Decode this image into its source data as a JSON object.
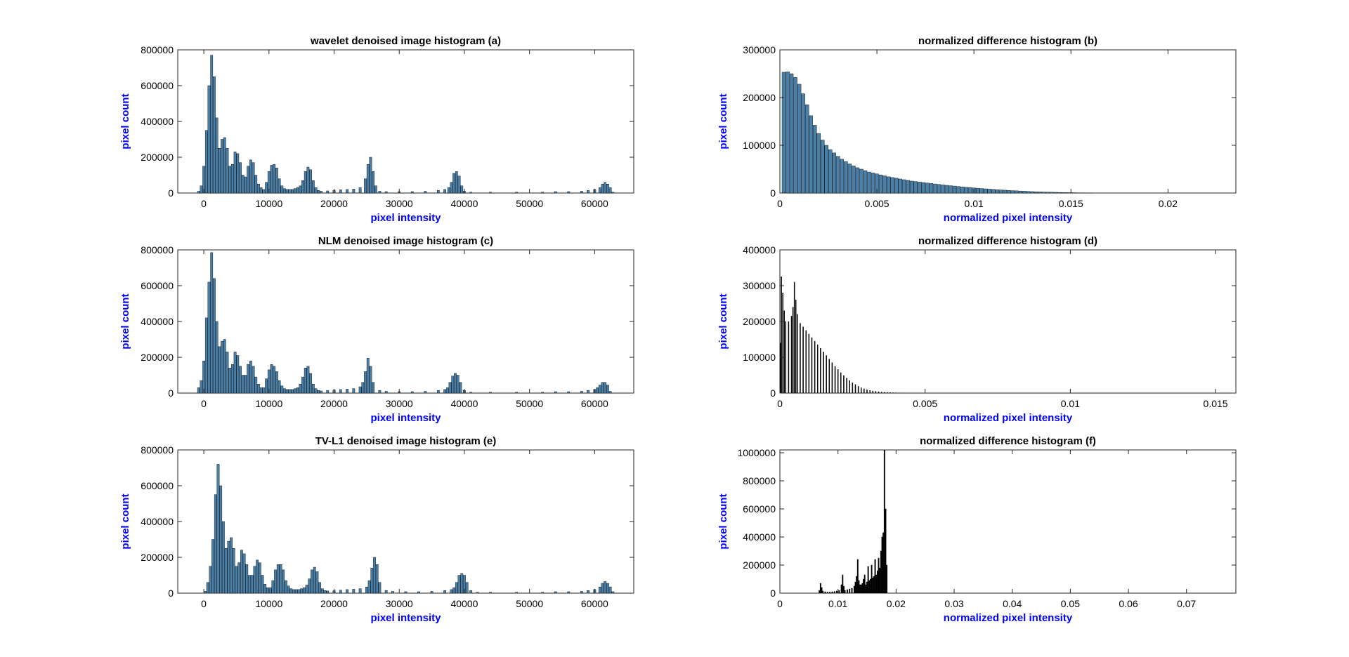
{
  "chart_data": [
    {
      "type": "bar",
      "title": "wavelet denoised image histogram (a)",
      "xlabel": "pixel intensity",
      "ylabel": "pixel count",
      "xlim": [
        -4000,
        66000
      ],
      "ylim": [
        0,
        800000
      ],
      "xticks": [
        0,
        10000,
        20000,
        30000,
        40000,
        50000,
        60000
      ],
      "yticks": [
        0,
        200000,
        400000,
        600000,
        800000
      ],
      "bar_color": "#4a7fa8",
      "x": [
        -800,
        -400,
        0,
        400,
        800,
        1200,
        1600,
        2000,
        2400,
        2800,
        3200,
        3600,
        4000,
        4400,
        4800,
        5200,
        5600,
        6000,
        6400,
        6800,
        7200,
        7600,
        8000,
        8400,
        8800,
        9200,
        9600,
        10000,
        10400,
        10800,
        11200,
        11600,
        12000,
        12400,
        12800,
        13200,
        13600,
        14000,
        14400,
        14800,
        15200,
        15600,
        16000,
        16400,
        16800,
        17200,
        17600,
        18000,
        19000,
        20000,
        21000,
        22000,
        23000,
        24000,
        24800,
        25200,
        25600,
        26000,
        26400,
        27000,
        28000,
        30000,
        32000,
        34000,
        36000,
        37000,
        37600,
        38000,
        38400,
        38800,
        39200,
        39600,
        40000,
        41000,
        44000,
        48000,
        52000,
        54000,
        56000,
        58000,
        59000,
        60000,
        60800,
        61200,
        61600,
        62000,
        62400,
        62800
      ],
      "values": [
        10000,
        40000,
        150000,
        350000,
        600000,
        770000,
        650000,
        420000,
        250000,
        300000,
        310000,
        250000,
        150000,
        160000,
        230000,
        220000,
        170000,
        100000,
        90000,
        150000,
        185000,
        170000,
        100000,
        50000,
        30000,
        20000,
        60000,
        120000,
        155000,
        160000,
        140000,
        80000,
        40000,
        25000,
        20000,
        20000,
        20000,
        25000,
        30000,
        40000,
        70000,
        120000,
        145000,
        130000,
        70000,
        30000,
        15000,
        10000,
        12000,
        15000,
        18000,
        20000,
        22000,
        30000,
        80000,
        160000,
        200000,
        120000,
        40000,
        10000,
        8000,
        8000,
        8000,
        10000,
        15000,
        20000,
        30000,
        60000,
        110000,
        120000,
        95000,
        40000,
        10000,
        5000,
        5000,
        5000,
        5000,
        8000,
        8000,
        10000,
        15000,
        20000,
        30000,
        50000,
        60000,
        50000,
        30000,
        5000
      ]
    },
    {
      "type": "bar",
      "title": "normalized difference histogram (b)",
      "xlabel": "normalized pixel intensity",
      "ylabel": "pixel count",
      "xlim": [
        0,
        0.0235
      ],
      "ylim": [
        0,
        300000
      ],
      "xticks": [
        0,
        0.005,
        0.01,
        0.015,
        0.02
      ],
      "yticks": [
        0,
        100000,
        200000,
        300000
      ],
      "bar_color": "#4a7fa8",
      "x": [
        0.0002,
        0.0004,
        0.0006,
        0.0008,
        0.001,
        0.0012,
        0.0014,
        0.0016,
        0.0018,
        0.002,
        0.0022,
        0.0024,
        0.0026,
        0.0028,
        0.003,
        0.0032,
        0.0034,
        0.0036,
        0.0038,
        0.004,
        0.0042,
        0.0044,
        0.0046,
        0.0048,
        0.005,
        0.0052,
        0.0054,
        0.0056,
        0.0058,
        0.006,
        0.0062,
        0.0064,
        0.0066,
        0.0068,
        0.007,
        0.0072,
        0.0074,
        0.0076,
        0.0078,
        0.008,
        0.0082,
        0.0084,
        0.0086,
        0.0088,
        0.009,
        0.0092,
        0.0094,
        0.0096,
        0.0098,
        0.01,
        0.0102,
        0.0104,
        0.0106,
        0.0108,
        0.011,
        0.0112,
        0.0114,
        0.0116,
        0.0118,
        0.012,
        0.0122,
        0.0124,
        0.0126,
        0.0128,
        0.013,
        0.0132,
        0.0134,
        0.0136,
        0.0138,
        0.014,
        0.0142,
        0.0144,
        0.0146,
        0.0148,
        0.015,
        0.0152,
        0.0154,
        0.0156,
        0.0158,
        0.016
      ],
      "values": [
        253000,
        254000,
        250000,
        242000,
        228000,
        208000,
        185000,
        162000,
        142000,
        125000,
        111000,
        100000,
        91000,
        84000,
        77000,
        71000,
        66000,
        61000,
        57000,
        53000,
        50000,
        47000,
        44000,
        42000,
        40000,
        38000,
        36000,
        34000,
        32500,
        31000,
        29500,
        28000,
        26500,
        25000,
        24000,
        23000,
        22000,
        21000,
        20000,
        19000,
        18000,
        17000,
        16200,
        15400,
        14600,
        13800,
        13000,
        12200,
        11500,
        10800,
        10100,
        9400,
        8800,
        8200,
        7600,
        7000,
        6500,
        6000,
        5500,
        5000,
        4600,
        4200,
        3800,
        3400,
        3000,
        2700,
        2400,
        2100,
        1900,
        1700,
        1500,
        1300,
        1100,
        950,
        800,
        650,
        500,
        380,
        260,
        150
      ]
    },
    {
      "type": "bar",
      "title": "NLM denoised image histogram (c)",
      "xlabel": "pixel intensity",
      "ylabel": "pixel count",
      "xlim": [
        -4000,
        66000
      ],
      "ylim": [
        0,
        800000
      ],
      "xticks": [
        0,
        10000,
        20000,
        30000,
        40000,
        50000,
        60000
      ],
      "yticks": [
        0,
        200000,
        400000,
        600000,
        800000
      ],
      "bar_color": "#4a7fa8",
      "x": [
        -800,
        -400,
        0,
        400,
        800,
        1200,
        1600,
        2000,
        2400,
        2800,
        3200,
        3600,
        4000,
        4400,
        4800,
        5200,
        5600,
        6000,
        6400,
        6800,
        7200,
        7600,
        8000,
        8400,
        8800,
        9200,
        9600,
        10000,
        10400,
        10800,
        11200,
        11600,
        12000,
        12400,
        12800,
        13200,
        13600,
        14000,
        14400,
        14800,
        15200,
        15600,
        16000,
        16400,
        16800,
        17200,
        17600,
        18000,
        19000,
        20000,
        21000,
        22000,
        23000,
        24000,
        24400,
        24800,
        25200,
        25600,
        26000,
        27000,
        28000,
        30000,
        32000,
        34000,
        36000,
        37000,
        37400,
        37800,
        38200,
        38600,
        39000,
        39400,
        40000,
        41000,
        44000,
        48000,
        52000,
        54000,
        56000,
        58000,
        59000,
        60000,
        60400,
        60800,
        61200,
        61600,
        62000,
        62400
      ],
      "values": [
        30000,
        70000,
        180000,
        420000,
        620000,
        785000,
        640000,
        400000,
        260000,
        290000,
        300000,
        230000,
        140000,
        160000,
        230000,
        210000,
        150000,
        100000,
        100000,
        160000,
        180000,
        150000,
        90000,
        50000,
        30000,
        30000,
        80000,
        130000,
        160000,
        150000,
        120000,
        70000,
        40000,
        25000,
        20000,
        20000,
        20000,
        25000,
        30000,
        50000,
        90000,
        140000,
        150000,
        110000,
        50000,
        25000,
        15000,
        12000,
        14000,
        17000,
        20000,
        22000,
        25000,
        35000,
        60000,
        120000,
        195000,
        150000,
        60000,
        15000,
        10000,
        8000,
        8000,
        10000,
        15000,
        20000,
        30000,
        60000,
        95000,
        110000,
        100000,
        60000,
        15000,
        5000,
        5000,
        5000,
        5000,
        8000,
        8000,
        10000,
        15000,
        20000,
        30000,
        45000,
        60000,
        60000,
        45000,
        10000
      ]
    },
    {
      "type": "bar",
      "title": "normalized difference histogram (d)",
      "xlabel": "normalized pixel intensity",
      "ylabel": "pixel count",
      "xlim": [
        0,
        0.0157
      ],
      "ylim": [
        0,
        400000
      ],
      "xticks": [
        0,
        0.005,
        0.01,
        0.015
      ],
      "yticks": [
        0,
        100000,
        200000,
        300000,
        400000
      ],
      "bar_color": "#000000",
      "x": [
        2e-05,
        5e-05,
        0.0001,
        0.00015,
        0.0002,
        0.0003,
        0.0004,
        0.00045,
        0.0005,
        0.00055,
        0.0006,
        0.0007,
        0.0008,
        0.0009,
        0.001,
        0.0011,
        0.0012,
        0.0013,
        0.0014,
        0.0015,
        0.0016,
        0.0017,
        0.0018,
        0.0019,
        0.002,
        0.0021,
        0.0022,
        0.0023,
        0.0024,
        0.0025,
        0.0026,
        0.0027,
        0.0028,
        0.0029,
        0.003,
        0.0031,
        0.0032,
        0.0033,
        0.0034,
        0.0035,
        0.0036,
        0.0037,
        0.0038,
        0.0039,
        0.004,
        0.0041,
        0.0042,
        0.0043,
        0.0044
      ],
      "values": [
        140000,
        325000,
        280000,
        230000,
        200000,
        200000,
        215000,
        240000,
        310000,
        260000,
        220000,
        195000,
        185000,
        175000,
        165000,
        155000,
        145000,
        135000,
        125000,
        115000,
        105000,
        95000,
        85000,
        75000,
        66000,
        57000,
        49000,
        42000,
        35000,
        29000,
        24000,
        19000,
        15000,
        12000,
        9500,
        7500,
        6000,
        4800,
        3800,
        3000,
        2300,
        1800,
        1400,
        1100,
        800,
        600,
        400,
        250,
        120
      ]
    },
    {
      "type": "bar",
      "title": "TV-L1 denoised image histogram (e)",
      "xlabel": "pixel intensity",
      "ylabel": "pixel count",
      "xlim": [
        -4000,
        66000
      ],
      "ylim": [
        0,
        800000
      ],
      "xticks": [
        0,
        10000,
        20000,
        30000,
        40000,
        50000,
        60000
      ],
      "yticks": [
        0,
        200000,
        400000,
        600000,
        800000
      ],
      "bar_color": "#4a7fa8",
      "x": [
        200,
        600,
        1000,
        1400,
        1800,
        2200,
        2600,
        3000,
        3400,
        3800,
        4200,
        4600,
        5000,
        5400,
        5800,
        6200,
        6600,
        7000,
        7400,
        7800,
        8200,
        8600,
        9000,
        9400,
        9800,
        10200,
        10600,
        11000,
        11400,
        11800,
        12200,
        12600,
        13000,
        13400,
        13800,
        14200,
        14600,
        15000,
        15400,
        15800,
        16200,
        16600,
        17000,
        17400,
        17800,
        18200,
        18600,
        19000,
        20000,
        21000,
        22000,
        23000,
        24000,
        25000,
        25400,
        25800,
        26200,
        26600,
        27000,
        28000,
        29000,
        31000,
        33000,
        35000,
        37000,
        38000,
        38400,
        38800,
        39200,
        39600,
        40000,
        40400,
        41000,
        42000,
        44000,
        48000,
        52000,
        54000,
        56000,
        58000,
        59000,
        60000,
        60800,
        61200,
        61600,
        62000,
        62400,
        62800
      ],
      "values": [
        10000,
        60000,
        150000,
        300000,
        550000,
        720000,
        600000,
        400000,
        250000,
        290000,
        310000,
        250000,
        150000,
        170000,
        240000,
        220000,
        160000,
        100000,
        100000,
        150000,
        185000,
        170000,
        100000,
        50000,
        30000,
        30000,
        70000,
        130000,
        160000,
        160000,
        130000,
        70000,
        40000,
        25000,
        20000,
        20000,
        20000,
        25000,
        30000,
        45000,
        80000,
        130000,
        145000,
        120000,
        60000,
        25000,
        15000,
        12000,
        14000,
        17000,
        20000,
        22000,
        25000,
        35000,
        70000,
        140000,
        200000,
        160000,
        60000,
        15000,
        10000,
        8000,
        8000,
        10000,
        15000,
        20000,
        30000,
        60000,
        100000,
        110000,
        100000,
        60000,
        15000,
        5000,
        5000,
        5000,
        5000,
        8000,
        8000,
        10000,
        15000,
        20000,
        35000,
        55000,
        65000,
        55000,
        35000,
        8000
      ]
    },
    {
      "type": "bar",
      "title": "normalized difference histogram (f)",
      "xlabel": "normalized pixel intensity",
      "ylabel": "pixel count",
      "xlim": [
        0,
        0.0785
      ],
      "ylim": [
        0,
        1020000
      ],
      "xticks": [
        0,
        0.01,
        0.02,
        0.03,
        0.04,
        0.05,
        0.06,
        0.07
      ],
      "yticks": [
        0,
        200000,
        400000,
        600000,
        800000,
        1000000
      ],
      "bar_color": "#000000",
      "x": [
        0.0068,
        0.007,
        0.0072,
        0.0074,
        0.0078,
        0.0082,
        0.0086,
        0.009,
        0.0094,
        0.0098,
        0.0102,
        0.0106,
        0.0108,
        0.011,
        0.0112,
        0.0116,
        0.012,
        0.0124,
        0.0128,
        0.013,
        0.0132,
        0.0134,
        0.0136,
        0.0138,
        0.014,
        0.0142,
        0.0144,
        0.0146,
        0.0148,
        0.015,
        0.0152,
        0.0154,
        0.0156,
        0.0158,
        0.016,
        0.0162,
        0.0164,
        0.0166,
        0.0168,
        0.017,
        0.0172,
        0.0174,
        0.0176,
        0.0178,
        0.018,
        0.0182,
        0.0184
      ],
      "values": [
        20000,
        70000,
        40000,
        15000,
        10000,
        8000,
        8000,
        10000,
        12000,
        15000,
        20000,
        60000,
        130000,
        50000,
        20000,
        25000,
        30000,
        35000,
        50000,
        80000,
        120000,
        240000,
        90000,
        60000,
        60000,
        70000,
        100000,
        130000,
        60000,
        80000,
        190000,
        90000,
        100000,
        200000,
        110000,
        120000,
        240000,
        130000,
        160000,
        250000,
        180000,
        300000,
        400000,
        430000,
        1020000,
        600000,
        200000
      ]
    }
  ]
}
